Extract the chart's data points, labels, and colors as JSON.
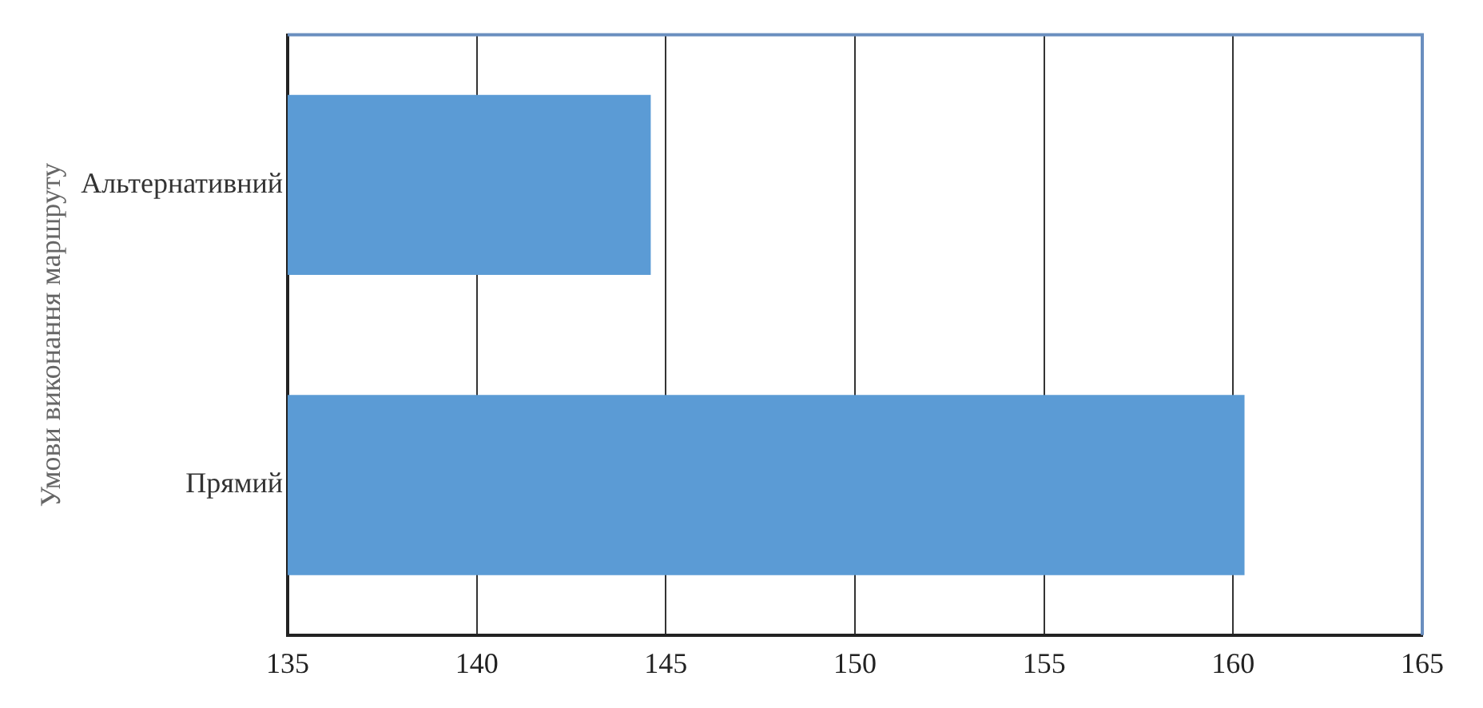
{
  "chart_data": {
    "type": "bar",
    "orientation": "horizontal",
    "ylabel": "Умови виконання маршруту",
    "categories": [
      "Альтернативний",
      "Прямий"
    ],
    "values": [
      144.6,
      160.3
    ],
    "color": "#5b9bd5",
    "xlim": [
      135,
      165
    ],
    "xticks": [
      135,
      140,
      145,
      150,
      155,
      160,
      165
    ],
    "grid": "x",
    "legend": false
  }
}
